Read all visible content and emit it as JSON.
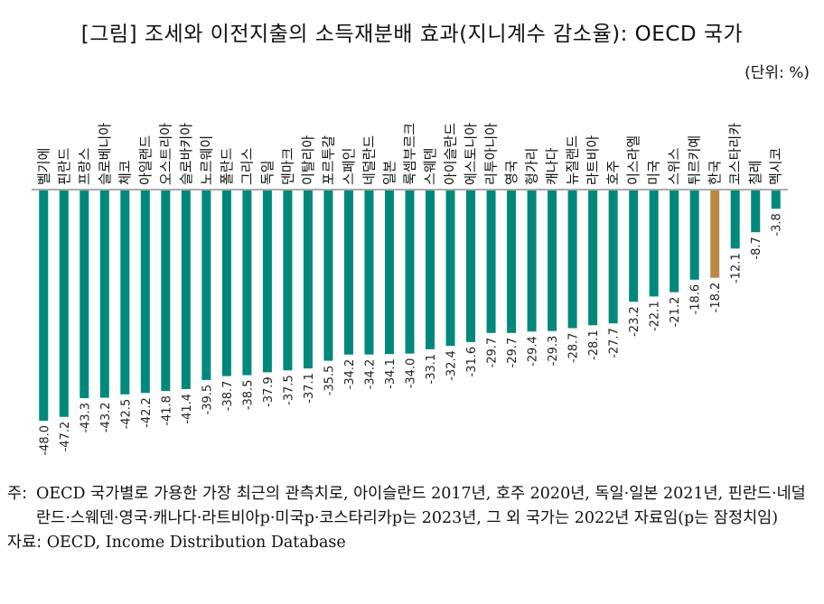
{
  "title": "[그림] 조세와 이전지출의 소득재분배 효과(지니계수 감소율): OECD 국가",
  "unit": "(단위: %)",
  "note_prefix": "주:",
  "note": "OECD 국가별로 가용한 가장 최근의 관측치로, 아이슬란드 2017년, 호주 2020년, 독일·일본 2021년, 핀란드·네덜란드·스웨덴·영국·캐나다·라트비아p·미국p·코스타리카p는 2023년, 그 외 국가는 2022년 자료임(p는 잠정치임)",
  "source_prefix": "자료:",
  "source": "OECD, Income Distribution Database",
  "colors": {
    "bar": "#00897b",
    "highlight": "#b98a44",
    "axis": "#555555"
  },
  "chart_data": {
    "type": "bar",
    "title": "[그림] 조세와 이전지출의 소득재분배 효과(지니계수 감소율): OECD 국가",
    "ylabel": "",
    "xlabel": "",
    "ylim": [
      -48,
      0
    ],
    "highlight_category": "한국",
    "categories": [
      "벨기에",
      "핀란드",
      "프랑스",
      "슬로베니아",
      "체코",
      "아일랜드",
      "오스트리아",
      "슬로바키아",
      "노르웨이",
      "폴란드",
      "그리스",
      "독일",
      "덴마크",
      "이탈리아",
      "포르투갈",
      "스페인",
      "네덜란드",
      "일본",
      "룩셈부르크",
      "스웨덴",
      "아이슬란드",
      "에스토니아",
      "리투아니아",
      "영국",
      "헝가리",
      "캐나다",
      "뉴질랜드",
      "라트비아",
      "호주",
      "이스라엘",
      "미국",
      "스위스",
      "튀르키예",
      "한국",
      "코스타리카",
      "칠레",
      "멕시코"
    ],
    "values": [
      -48.0,
      -47.2,
      -43.3,
      -43.2,
      -42.5,
      -42.2,
      -41.8,
      -41.4,
      -39.5,
      -38.7,
      -38.5,
      -37.9,
      -37.5,
      -37.1,
      -35.5,
      -34.2,
      -34.2,
      -34.1,
      -34.0,
      -33.1,
      -32.4,
      -31.6,
      -29.7,
      -29.7,
      -29.4,
      -29.3,
      -28.7,
      -28.1,
      -27.7,
      -23.2,
      -22.1,
      -21.2,
      -18.6,
      -18.2,
      -12.1,
      -8.7,
      -3.8
    ],
    "value_labels": [
      "-48.0",
      "-47.2",
      "-43.3",
      "-43.2",
      "-42.5",
      "-42.2",
      "-41.8",
      "-41.4",
      "-39.5",
      "-38.7",
      "-38.5",
      "-37.9",
      "-37.5",
      "-37.1",
      "-35.5",
      "-34.2",
      "-34.2",
      "-34.1",
      "-34.0",
      "-33.1",
      "-32.4",
      "-31.6",
      "-29.7",
      "-29.7",
      "-29.4",
      "-29.3",
      "-28.7",
      "-28.1",
      "-27.7",
      "-23.2",
      "-22.1",
      "-21.2",
      "-18.6",
      "-18.2",
      "-12.1",
      "-8.7",
      "-3.8"
    ]
  }
}
